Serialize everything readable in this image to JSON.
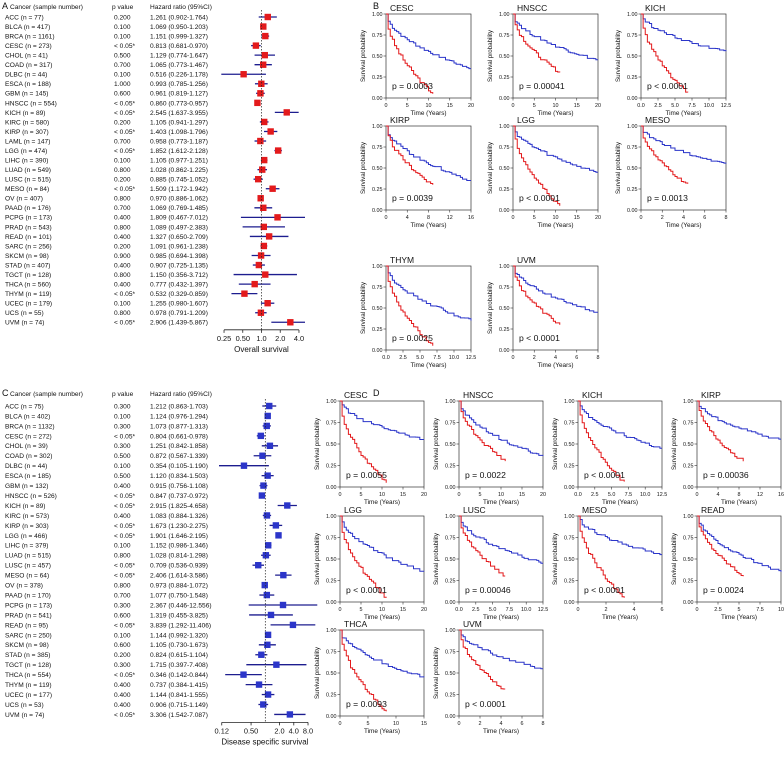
{
  "panels": {
    "A": {
      "letter": "A",
      "headers": {
        "cancer": "Cancer (sample number)",
        "p": "p value",
        "hr": "Hazard ratio (95%CI)"
      },
      "rows": [
        [
          "ACC (n = 77)",
          "0.200",
          "1.261 (0.902-1.764)",
          1.261,
          0.902,
          1.764
        ],
        [
          "BLCA (n = 417)",
          "0.100",
          "1.069 (0.950-1.203)",
          1.069,
          0.95,
          1.203
        ],
        [
          "BRCA (n = 1161)",
          "0.100",
          "1.151 (0.999-1.327)",
          1.151,
          0.999,
          1.327
        ],
        [
          "CESC (n = 273)",
          "< 0.05*",
          "0.813 (0.681-0.970)",
          0.813,
          0.681,
          0.97
        ],
        [
          "CHOL (n = 41)",
          "0.500",
          "1.129 (0.774-1.647)",
          1.129,
          0.774,
          1.647
        ],
        [
          "COAD (n = 317)",
          "0.700",
          "1.065 (0.773-1.467)",
          1.065,
          0.773,
          1.467
        ],
        [
          "DLBC (n = 44)",
          "0.100",
          "0.516 (0.226-1.178)",
          0.516,
          0.226,
          1.178
        ],
        [
          "ESCA (n = 188)",
          "1.000",
          "0.993 (0.785-1.256)",
          0.993,
          0.785,
          1.256
        ],
        [
          "GBM (n = 145)",
          "0.600",
          "0.961 (0.819-1.127)",
          0.961,
          0.819,
          1.127
        ],
        [
          "HNSCC (n = 554)",
          "< 0.05*",
          "0.860 (0.773-0.957)",
          0.86,
          0.773,
          0.957
        ],
        [
          "KICH (n = 89)",
          "< 0.05*",
          "2.545 (1.637-3.955)",
          2.545,
          1.637,
          3.955
        ],
        [
          "KIRC (n = 580)",
          "0.200",
          "1.105 (0.941-1.297)",
          1.105,
          0.941,
          1.297
        ],
        [
          "KIRP (n = 307)",
          "< 0.05*",
          "1.403 (1.098-1.796)",
          1.403,
          1.098,
          1.796
        ],
        [
          "LAML (n = 147)",
          "0.700",
          "0.958 (0.773-1.187)",
          0.958,
          0.773,
          1.187
        ],
        [
          "LGG (n = 474)",
          "< 0.05*",
          "1.852 (1.612-2.128)",
          1.852,
          1.612,
          2.128
        ],
        [
          "LIHC (n = 390)",
          "0.100",
          "1.105 (0.977-1.251)",
          1.105,
          0.977,
          1.251
        ],
        [
          "LUAD (n = 549)",
          "0.800",
          "1.028 (0.862-1.225)",
          1.028,
          0.862,
          1.225
        ],
        [
          "LUSC (n = 515)",
          "0.200",
          "0.885 (0.745-1.052)",
          0.885,
          0.745,
          1.052
        ],
        [
          "MESO (n = 84)",
          "< 0.05*",
          "1.509 (1.172-1.942)",
          1.509,
          1.172,
          1.942
        ],
        [
          "OV (n = 407)",
          "0.800",
          "0.970 (0.886-1.062)",
          0.97,
          0.886,
          1.062
        ],
        [
          "PAAD (n = 176)",
          "0.700",
          "1.069 (0.769-1.485)",
          1.069,
          0.769,
          1.485
        ],
        [
          "PCPG (n = 173)",
          "0.400",
          "1.809 (0.467-7.012)",
          1.809,
          0.467,
          7.012
        ],
        [
          "PRAD (n = 543)",
          "0.800",
          "1.089 (0.497-2.383)",
          1.089,
          0.497,
          2.383
        ],
        [
          "READ (n = 101)",
          "0.400",
          "1.327 (0.650-2.709)",
          1.327,
          0.65,
          2.709
        ],
        [
          "SARC (n = 256)",
          "0.200",
          "1.091 (0.961-1.238)",
          1.091,
          0.961,
          1.238
        ],
        [
          "SKCM (n = 98)",
          "0.900",
          "0.985 (0.694-1.398)",
          0.985,
          0.694,
          1.398
        ],
        [
          "STAD (n = 407)",
          "0.400",
          "0.907 (0.725-1.135)",
          0.907,
          0.725,
          1.135
        ],
        [
          "TGCT (n = 128)",
          "0.800",
          "1.150 (0.356-3.712)",
          1.15,
          0.356,
          3.712
        ],
        [
          "THCA (n = 560)",
          "0.400",
          "0.777 (0.432-1.397)",
          0.777,
          0.432,
          1.397
        ],
        [
          "THYM (n = 119)",
          "< 0.05*",
          "0.532 (0.329-0.859)",
          0.532,
          0.329,
          0.859
        ],
        [
          "UCEC (n = 179)",
          "0.100",
          "1.255 (0.980-1.607)",
          1.255,
          0.98,
          1.607
        ],
        [
          "UCS (n = 55)",
          "0.800",
          "0.978 (0.791-1.209)",
          0.978,
          0.791,
          1.209
        ],
        [
          "UVM (n = 74)",
          "< 0.05*",
          "2.906 (1.439-5.867)",
          2.906,
          1.439,
          5.867
        ]
      ],
      "ticks": [
        0.25,
        0.5,
        1.0,
        2.0,
        4.0
      ],
      "tick_labels": [
        "0.25",
        "0.50",
        "1.0",
        "2.0",
        "4.0"
      ],
      "range": [
        0.2,
        5.0
      ],
      "xlabel": "Overall survival",
      "color": "#e31a1c"
    },
    "C": {
      "letter": "C",
      "headers": {
        "cancer": "Cancer (sample number)",
        "p": "p value",
        "hr": "Hazard ratio (95%CI)"
      },
      "rows": [
        [
          "ACC (n = 75)",
          "0.300",
          "1.212 (0.863-1.703)",
          1.212,
          0.863,
          1.703
        ],
        [
          "BLCA (n = 402)",
          "0.100",
          "1.124 (0.976-1.294)",
          1.124,
          0.976,
          1.294
        ],
        [
          "BRCA (n = 1132)",
          "0.300",
          "1.073 (0.877-1.313)",
          1.073,
          0.877,
          1.313
        ],
        [
          "CESC (n = 272)",
          "< 0.05*",
          "0.804 (0.661-0.978)",
          0.804,
          0.661,
          0.978
        ],
        [
          "CHOL (n = 39)",
          "0.300",
          "1.251 (0.842-1.858)",
          1.251,
          0.842,
          1.858
        ],
        [
          "COAD (n = 302)",
          "0.500",
          "0.872 (0.567-1.339)",
          0.872,
          0.567,
          1.339
        ],
        [
          "DLBC (n = 44)",
          "0.100",
          "0.354 (0.105-1.190)",
          0.354,
          0.105,
          1.19
        ],
        [
          "ESCA (n = 185)",
          "0.500",
          "1.120 (0.834-1.503)",
          1.12,
          0.834,
          1.503
        ],
        [
          "GBM (n = 132)",
          "0.400",
          "0.915 (0.756-1.108)",
          0.915,
          0.756,
          1.108
        ],
        [
          "HNSCC (n = 526)",
          "< 0.05*",
          "0.847 (0.737-0.972)",
          0.847,
          0.737,
          0.972
        ],
        [
          "KICH (n = 89)",
          "< 0.05*",
          "2.915 (1.825-4.658)",
          2.915,
          1.825,
          4.658
        ],
        [
          "KIRC (n = 573)",
          "0.400",
          "1.083 (0.884-1.326)",
          1.083,
          0.884,
          1.326
        ],
        [
          "KIRP (n = 303)",
          "< 0.05*",
          "1.673 (1.230-2.275)",
          1.673,
          1.23,
          2.275
        ],
        [
          "LGG (n = 466)",
          "< 0.05*",
          "1.901 (1.646-2.195)",
          1.901,
          1.646,
          2.195
        ],
        [
          "LIHC (n = 379)",
          "0.100",
          "1.152 (0.986-1.346)",
          1.152,
          0.986,
          1.346
        ],
        [
          "LUAD (n = 515)",
          "0.800",
          "1.028 (0.814-1.298)",
          1.028,
          0.814,
          1.298
        ],
        [
          "LUSC (n = 457)",
          "< 0.05*",
          "0.709 (0.536-0.939)",
          0.709,
          0.536,
          0.939
        ],
        [
          "MESO (n = 64)",
          "< 0.05*",
          "2.406 (1.614-3.586)",
          2.406,
          1.614,
          3.586
        ],
        [
          "OV (n = 378)",
          "0.800",
          "0.973 (0.884-1.072)",
          0.973,
          0.884,
          1.072
        ],
        [
          "PAAD (n = 170)",
          "0.700",
          "1.077 (0.750-1.548)",
          1.077,
          0.75,
          1.548
        ],
        [
          "PCPG (n = 173)",
          "0.300",
          "2.367 (0.446-12.556)",
          2.367,
          0.446,
          12.556
        ],
        [
          "PRAD (n = 541)",
          "0.600",
          "1.319 (0.455-3.825)",
          1.319,
          0.455,
          3.825
        ],
        [
          "READ (n = 95)",
          "< 0.05*",
          "3.839 (1.292-11.406)",
          3.839,
          1.292,
          11.406
        ],
        [
          "SARC (n = 250)",
          "0.100",
          "1.144 (0.992-1.320)",
          1.144,
          0.992,
          1.32
        ],
        [
          "SKCM (n = 98)",
          "0.600",
          "1.105 (0.730-1.673)",
          1.105,
          0.73,
          1.673
        ],
        [
          "STAD (n = 385)",
          "0.200",
          "0.824 (0.615-1.104)",
          0.824,
          0.615,
          1.104
        ],
        [
          "TGCT (n = 128)",
          "0.300",
          "1.715 (0.397-7.408)",
          1.715,
          0.397,
          7.408
        ],
        [
          "THCA (n = 554)",
          "< 0.05*",
          "0.346 (0.142-0.844)",
          0.346,
          0.142,
          0.844
        ],
        [
          "THYM (n = 119)",
          "0.400",
          "0.737 (0.384-1.415)",
          0.737,
          0.384,
          1.415
        ],
        [
          "UCEC (n = 177)",
          "0.400",
          "1.144 (0.841-1.555)",
          1.144,
          0.841,
          1.555
        ],
        [
          "UCS (n = 53)",
          "0.400",
          "0.906 (0.715-1.149)",
          0.906,
          0.715,
          1.149
        ],
        [
          "UVM (n = 74)",
          "< 0.05*",
          "3.306 (1.542-7.087)",
          3.306,
          1.542,
          7.087
        ]
      ],
      "ticks": [
        0.12,
        0.5,
        2.0,
        4.0,
        8.0
      ],
      "tick_labels": [
        "0.12",
        "0.50",
        "2.0",
        "4.0",
        "8.0"
      ],
      "range": [
        0.1,
        13.0
      ],
      "xlabel": "Disease specific survival",
      "color": "#2b35c9"
    },
    "B": {
      "letter": "B"
    },
    "D": {
      "letter": "D"
    }
  },
  "km_common": {
    "ylabel": "Survival probability",
    "xlabel": "Time (Years)",
    "yticks": [
      "0.00",
      "0.25",
      "0.50",
      "0.75",
      "1.00"
    ],
    "high_color": "#e31a1c",
    "low_color": "#2b35c9"
  },
  "km_B": [
    {
      "title": "CESC",
      "p": "p = 0.0003",
      "xticks": [
        "0",
        "5",
        "10",
        "15",
        "20"
      ],
      "xmax": 20
    },
    {
      "title": "HNSCC",
      "p": "p = 0.00041",
      "xticks": [
        "0",
        "5",
        "10",
        "15",
        "20"
      ],
      "xmax": 20
    },
    {
      "title": "KICH",
      "p": "p < 0.0001",
      "xticks": [
        "0.0",
        "2.5",
        "5.0",
        "7.5",
        "10.0",
        "12.5"
      ],
      "xmax": 12.5
    },
    {
      "title": "KIRP",
      "p": "p = 0.0039",
      "xticks": [
        "0",
        "4",
        "8",
        "12",
        "16"
      ],
      "xmax": 16
    },
    {
      "title": "LGG",
      "p": "p < 0.0001",
      "xticks": [
        "0",
        "5",
        "10",
        "15",
        "20"
      ],
      "xmax": 20
    },
    {
      "title": "MESO",
      "p": "p = 0.0013",
      "xticks": [
        "0",
        "2",
        "4",
        "6",
        "8"
      ],
      "xmax": 8
    },
    {
      "title": "THYM",
      "p": "p = 0.0025",
      "xticks": [
        "0.0",
        "2.5",
        "5.0",
        "7.5",
        "10.0",
        "12.5"
      ],
      "xmax": 12.5
    },
    {
      "title": "UVM",
      "p": "p < 0.0001",
      "xticks": [
        "0",
        "2",
        "4",
        "6",
        "8"
      ],
      "xmax": 8
    }
  ],
  "km_D": [
    {
      "title": "CESC",
      "p": "p = 0.0055",
      "xticks": [
        "0",
        "5",
        "10",
        "15",
        "20"
      ],
      "xmax": 20
    },
    {
      "title": "HNSCC",
      "p": "p = 0.0022",
      "xticks": [
        "0",
        "5",
        "10",
        "15",
        "20"
      ],
      "xmax": 20
    },
    {
      "title": "KICH",
      "p": "p < 0.0001",
      "xticks": [
        "0.0",
        "2.5",
        "5.0",
        "7.5",
        "10.0",
        "12.5"
      ],
      "xmax": 12.5
    },
    {
      "title": "KIRP",
      "p": "p = 0.00036",
      "xticks": [
        "0",
        "4",
        "8",
        "12",
        "16"
      ],
      "xmax": 16
    },
    {
      "title": "LGG",
      "p": "p < 0.0001",
      "xticks": [
        "0",
        "5",
        "10",
        "15",
        "20"
      ],
      "xmax": 20
    },
    {
      "title": "LUSC",
      "p": "p = 0.00046",
      "xticks": [
        "0.0",
        "2.5",
        "5.0",
        "7.5",
        "10.0",
        "12.5"
      ],
      "xmax": 12.5
    },
    {
      "title": "MESO",
      "p": "p < 0.0001",
      "xticks": [
        "0",
        "2",
        "4",
        "6"
      ],
      "xmax": 6
    },
    {
      "title": "READ",
      "p": "p = 0.0024",
      "xticks": [
        "0",
        "2.5",
        "5",
        "7.5",
        "10"
      ],
      "xmax": 10
    },
    {
      "title": "THCA",
      "p": "p = 0.0093",
      "xticks": [
        "0",
        "5",
        "10",
        "15"
      ],
      "xmax": 15
    },
    {
      "title": "UVM",
      "p": "p < 0.0001",
      "xticks": [
        "0",
        "2",
        "4",
        "6",
        "8"
      ],
      "xmax": 8
    }
  ],
  "chart_data": [
    {
      "type": "forest",
      "title": "",
      "xlabel": "Overall survival",
      "x_scale": "log"
    },
    {
      "type": "line",
      "title": "",
      "xlabel": "Time (Years)",
      "ylabel": "Survival probability"
    },
    {
      "type": "forest",
      "title": "",
      "xlabel": "Disease specific survival",
      "x_scale": "log"
    },
    {
      "type": "line",
      "title": "",
      "xlabel": "Time (Years)",
      "ylabel": "Survival probability"
    }
  ]
}
